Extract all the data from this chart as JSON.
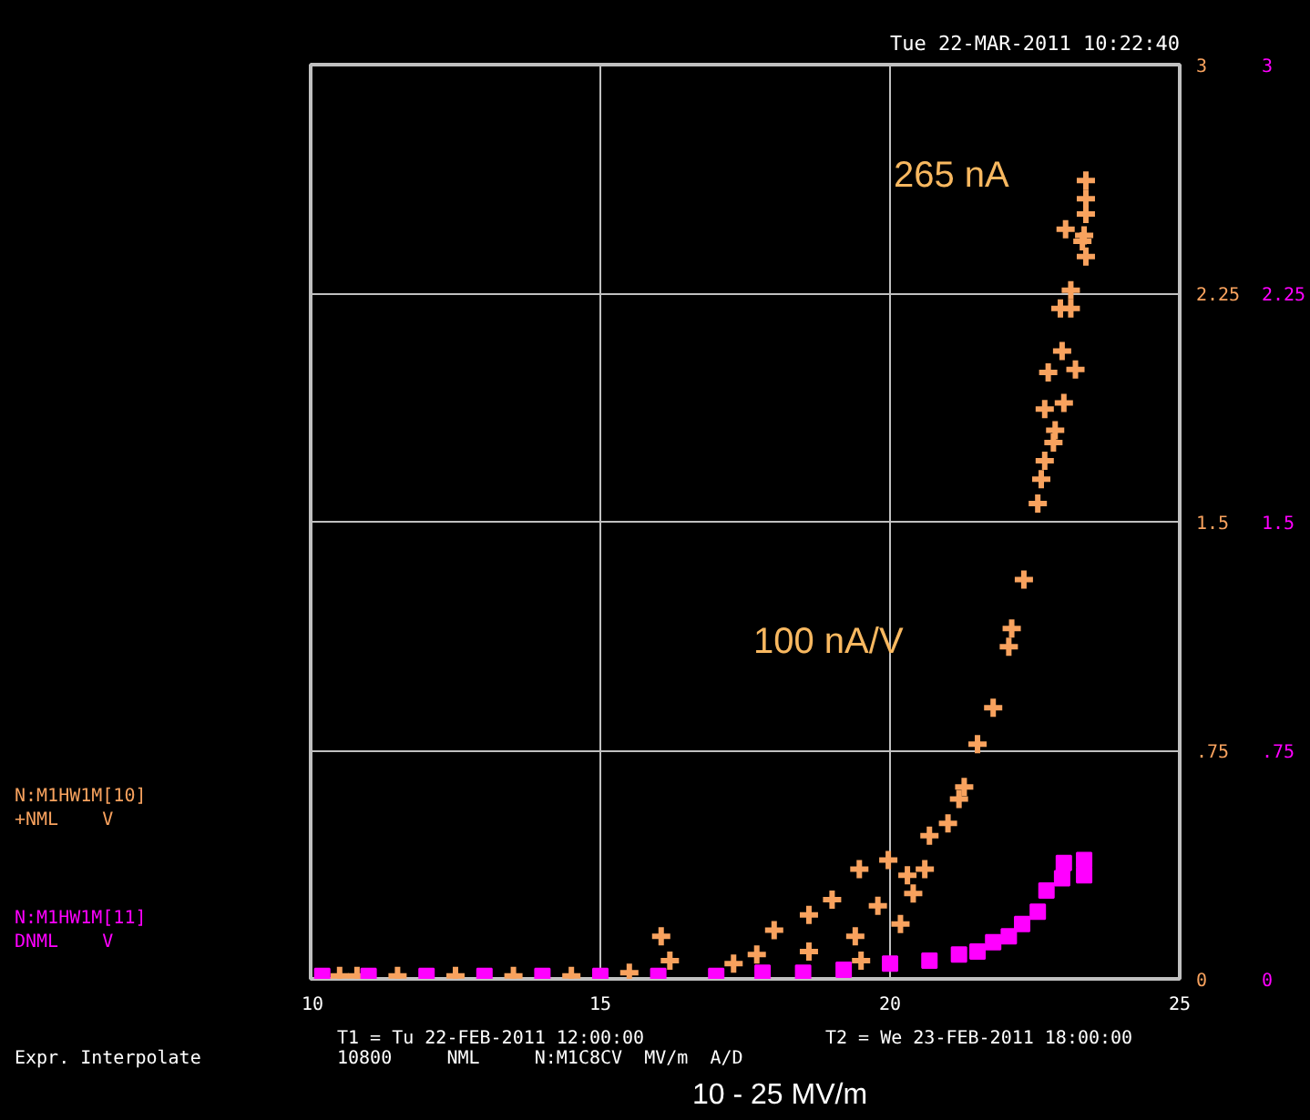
{
  "chart_data": {
    "type": "scatter",
    "title": "Tue 22-MAR-2011 10:22:40",
    "annotations": [
      "265 nA",
      "100 nA/V",
      "Expr. Interpolate",
      "T1 = Tu 22-FEB-2011 12:00:00",
      "T2 = We 23-FEB-2011 18:00:00",
      "10800     NML     N:M1C8CV  MV/m  A/D",
      "10 - 25 MV/m"
    ],
    "xlim": [
      10,
      25
    ],
    "xticks": [
      10,
      15,
      20,
      25
    ],
    "ylim": [
      0,
      3
    ],
    "yticks": [
      0,
      {
        "value": 0.75,
        "label": ".75"
      },
      1.5,
      2.25,
      3
    ],
    "y2lim": [
      0,
      3
    ],
    "y2ticks": [
      0,
      {
        "value": 0.75,
        "label": ".75"
      },
      1.5,
      2.25,
      3
    ],
    "grid": true,
    "series": [
      {
        "name": "N:M1HW1M[10]\n+NML    V",
        "color": "#f8a25e",
        "marker": "cross",
        "x": [
          10.5,
          10.8,
          11.5,
          12.5,
          13.5,
          14.5,
          15.5,
          16.05,
          16.2,
          17.3,
          17.7,
          18.0,
          18.6,
          18.6,
          19.0,
          19.4,
          19.47,
          19.5,
          19.79,
          19.97,
          20.18,
          20.3,
          20.4,
          20.6,
          20.68,
          21.0,
          21.19,
          21.28,
          21.51,
          21.78,
          22.05,
          22.1,
          22.31,
          22.55,
          22.61,
          22.67,
          22.67,
          22.73,
          22.82,
          22.85,
          22.97,
          23.0,
          22.94,
          23.12,
          23.12,
          23.2,
          23.03,
          23.32,
          23.38,
          23.35,
          23.38,
          23.38,
          23.38
        ],
        "values": [
          0.01,
          0.01,
          0.01,
          0.01,
          0.01,
          0.01,
          0.02,
          0.14,
          0.06,
          0.05,
          0.08,
          0.16,
          0.21,
          0.09,
          0.26,
          0.14,
          0.36,
          0.06,
          0.24,
          0.39,
          0.18,
          0.34,
          0.28,
          0.36,
          0.47,
          0.51,
          0.59,
          0.63,
          0.77,
          0.89,
          1.09,
          1.15,
          1.31,
          1.56,
          1.64,
          1.7,
          1.87,
          1.99,
          1.76,
          1.8,
          2.06,
          1.89,
          2.2,
          2.2,
          2.26,
          2.0,
          2.46,
          2.42,
          2.37,
          2.44,
          2.51,
          2.56,
          2.62
        ]
      },
      {
        "name": "N:M1HW1M[11]\nDNML    V",
        "color": "#ff00ff",
        "marker": "square",
        "axis": "y2",
        "x": [
          10.2,
          11.0,
          12.0,
          13.0,
          14.0,
          15.0,
          16.0,
          17.0,
          17.8,
          18.5,
          19.2,
          20.0,
          20.68,
          21.19,
          21.51,
          21.78,
          22.05,
          22.28,
          22.55,
          22.7,
          22.97,
          23.0,
          23.35,
          23.35
        ],
        "values": [
          0.01,
          0.01,
          0.01,
          0.01,
          0.01,
          0.01,
          0.01,
          0.01,
          0.02,
          0.02,
          0.03,
          0.05,
          0.06,
          0.08,
          0.09,
          0.12,
          0.14,
          0.18,
          0.22,
          0.29,
          0.33,
          0.38,
          0.34,
          0.39
        ]
      }
    ]
  }
}
